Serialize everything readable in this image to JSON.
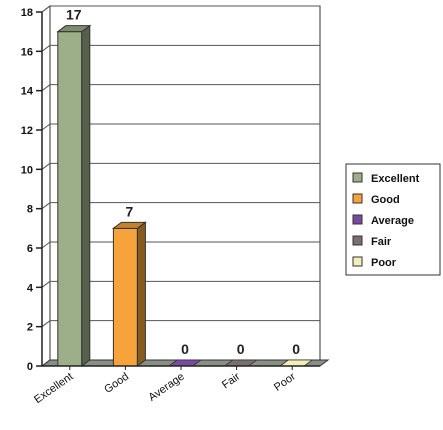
{
  "chart_data": {
    "type": "bar",
    "title": "",
    "xlabel": "",
    "ylabel": "",
    "categories": [
      "Excellent",
      "Good",
      "Average",
      "Fair",
      "Poor"
    ],
    "values": [
      17,
      7,
      0,
      0,
      0
    ],
    "data_labels": [
      "17",
      "7",
      "0",
      "0",
      "0"
    ],
    "ylim": [
      0,
      18
    ],
    "yticks": [
      "0",
      "2",
      "4",
      "6",
      "8",
      "10",
      "12",
      "14",
      "16",
      "18"
    ],
    "grid": true,
    "legend_position": "right",
    "legend": [
      "Excellent",
      "Good",
      "Average",
      "Fair",
      "Poor"
    ],
    "colors": {
      "Excellent": "#9caf88",
      "Good": "#f5a33a",
      "Average": "#7a4aa0",
      "Fair": "#7a6f6f",
      "Poor": "#f3efb6"
    }
  }
}
